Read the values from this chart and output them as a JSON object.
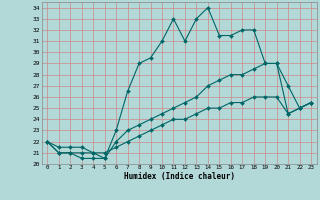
{
  "xlabel": "Humidex (Indice chaleur)",
  "bg_color": "#b2d8d8",
  "grid_color": "#cc8888",
  "line_color": "#006666",
  "xlim": [
    -0.5,
    23.5
  ],
  "ylim": [
    20,
    34.5
  ],
  "xticks": [
    0,
    1,
    2,
    3,
    4,
    5,
    6,
    7,
    8,
    9,
    10,
    11,
    12,
    13,
    14,
    15,
    16,
    17,
    18,
    19,
    20,
    21,
    22,
    23
  ],
  "yticks": [
    20,
    21,
    22,
    23,
    24,
    25,
    26,
    27,
    28,
    29,
    30,
    31,
    32,
    33,
    34
  ],
  "line1_x": [
    0,
    1,
    2,
    3,
    4,
    5,
    6,
    7,
    8,
    9,
    10,
    11,
    12,
    13,
    14,
    15,
    16,
    17,
    18,
    19,
    20,
    21,
    22,
    23
  ],
  "line1_y": [
    22,
    21,
    21,
    20.5,
    20.5,
    20.5,
    23,
    26.5,
    29,
    29.5,
    31,
    33,
    31,
    33,
    34,
    31.5,
    31.5,
    32,
    32,
    29,
    29,
    27,
    25,
    25.5
  ],
  "line2_x": [
    0,
    1,
    2,
    3,
    4,
    5,
    6,
    7,
    8,
    9,
    10,
    11,
    12,
    13,
    14,
    15,
    16,
    17,
    18,
    19,
    20,
    21,
    22,
    23
  ],
  "line2_y": [
    22,
    21,
    21,
    21,
    21,
    20.5,
    22,
    23,
    23.5,
    24,
    24.5,
    25,
    25.5,
    26,
    27,
    27.5,
    28,
    28,
    28.5,
    29,
    29,
    24.5,
    25,
    25.5
  ],
  "line3_x": [
    0,
    1,
    2,
    3,
    4,
    5,
    6,
    7,
    8,
    9,
    10,
    11,
    12,
    13,
    14,
    15,
    16,
    17,
    18,
    19,
    20,
    21,
    22,
    23
  ],
  "line3_y": [
    22,
    21.5,
    21.5,
    21.5,
    21,
    21,
    21.5,
    22,
    22.5,
    23,
    23.5,
    24,
    24,
    24.5,
    25,
    25,
    25.5,
    25.5,
    26,
    26,
    26,
    24.5,
    25,
    25.5
  ]
}
